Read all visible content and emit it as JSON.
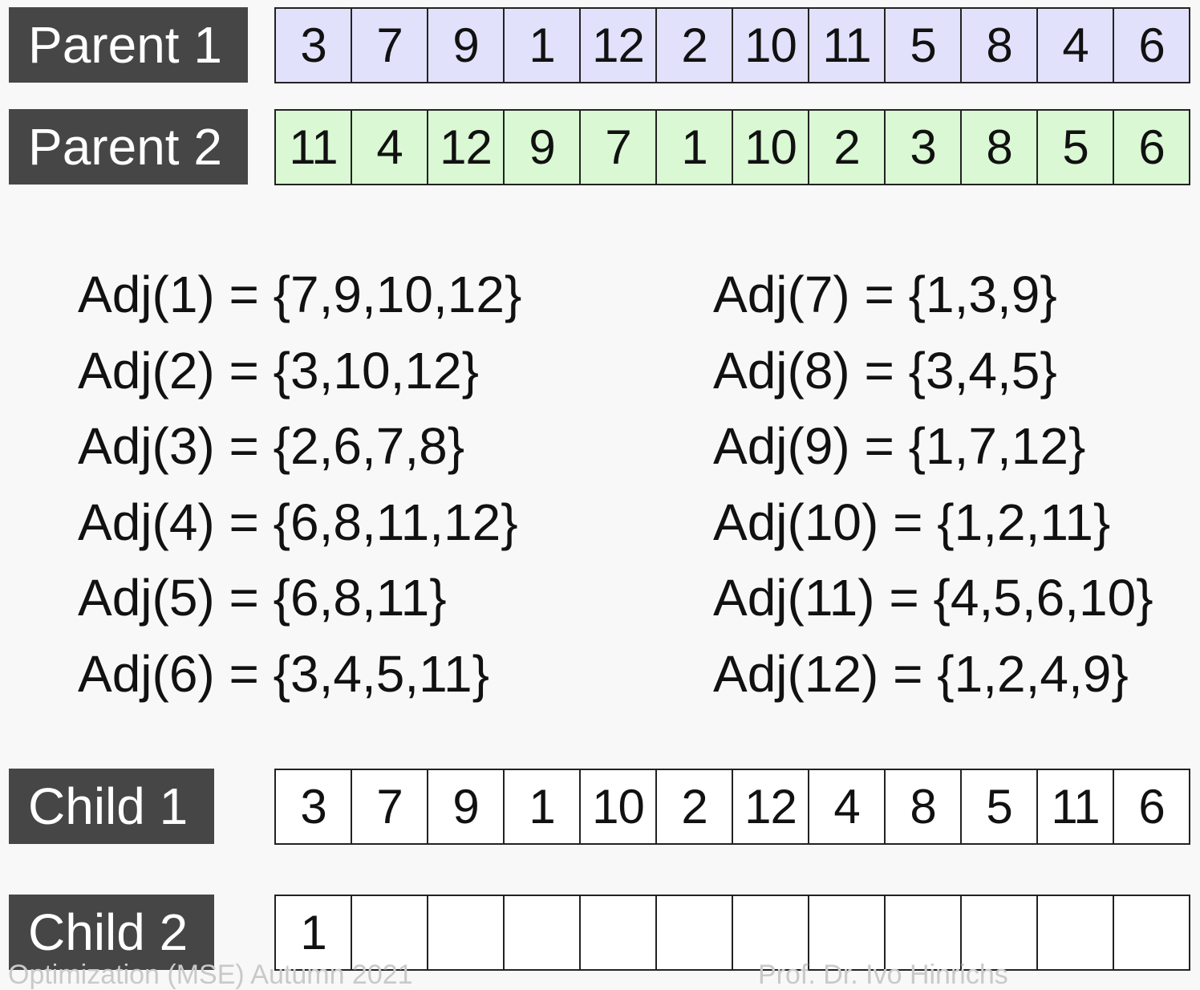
{
  "rows": [
    {
      "label": "Parent 1",
      "cells": [
        "3",
        "7",
        "9",
        "1",
        "12",
        "2",
        "10",
        "11",
        "5",
        "8",
        "4",
        "6"
      ],
      "fill": "#e1e1fb"
    },
    {
      "label": "Parent 2",
      "cells": [
        "11",
        "4",
        "12",
        "9",
        "7",
        "1",
        "10",
        "2",
        "3",
        "8",
        "5",
        "6"
      ],
      "fill": "#d9f8d3"
    },
    {
      "label": "Child 1",
      "cells": [
        "3",
        "7",
        "9",
        "1",
        "10",
        "2",
        "12",
        "4",
        "8",
        "5",
        "11",
        "6"
      ],
      "fill": "#ffffff"
    },
    {
      "label": "Child 2",
      "cells": [
        "1",
        "",
        "",
        "",
        "",
        "",
        "",
        "",
        "",
        "",
        "",
        ""
      ],
      "fill": "#ffffff"
    }
  ],
  "adjacency": {
    "left": [
      "Adj(1) = {7,9,10,12}",
      "Adj(2) = {3,10,12}",
      "Adj(3) = {2,6,7,8}",
      "Adj(4) = {6,8,11,12}",
      "Adj(5) = {6,8,11}",
      "Adj(6) = {3,4,5,11}"
    ],
    "right": [
      "Adj(7) = {1,3,9}",
      "Adj(8) = {3,4,5}",
      "Adj(9) = {1,7,12}",
      "Adj(10) = {1,2,11}",
      "Adj(11) = {4,5,6,10}",
      "Adj(12) = {1,2,4,9}"
    ]
  },
  "footer": {
    "left": "Optimization (MSE) Autumn 2021",
    "right": "Prof. Dr. Ivo Hinrichs"
  }
}
